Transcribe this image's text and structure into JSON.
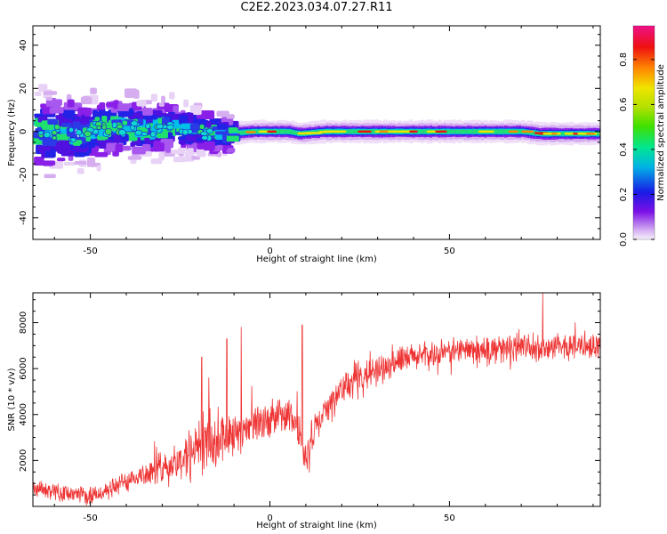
{
  "title": "C2E2.2023.034.07.27.R11",
  "chart_data": [
    {
      "type": "heatmap",
      "xlabel": "Height of straight line (km)",
      "ylabel": "Frequency (Hz)",
      "xlim": [
        -66,
        92
      ],
      "ylim": [
        -50,
        49
      ],
      "xticks": [
        -50,
        0,
        50
      ],
      "yticks": [
        -40,
        -20,
        0,
        20,
        40
      ],
      "ridge": [
        [
          -66,
          0
        ],
        [
          -55,
          -1
        ],
        [
          -45,
          2
        ],
        [
          -35,
          1
        ],
        [
          -28,
          2
        ],
        [
          -20,
          0
        ],
        [
          -12,
          -1
        ],
        [
          -5,
          0
        ],
        [
          0,
          0
        ],
        [
          5,
          0
        ],
        [
          8,
          -1
        ],
        [
          15,
          0
        ],
        [
          30,
          0
        ],
        [
          50,
          0
        ],
        [
          70,
          0
        ],
        [
          75,
          -1
        ],
        [
          92,
          -1
        ]
      ],
      "colorbar": {
        "label": "Normalized spectral amplitude",
        "range": [
          0,
          0.95
        ],
        "ticks": [
          0.0,
          0.2,
          0.4,
          0.6,
          0.8
        ],
        "tick_labels": [
          "0.0",
          "0.2",
          "0.4",
          "0.6",
          "0.8"
        ]
      }
    },
    {
      "type": "line",
      "xlabel": "Height of straight line (km)",
      "ylabel": "SNR (10 * v/v)",
      "xlim": [
        -66,
        92
      ],
      "ylim": [
        0,
        9300
      ],
      "xticks": [
        -50,
        0,
        50
      ],
      "yticks": [
        2000,
        4000,
        6000,
        8000
      ],
      "color": "#ee3333",
      "trend": [
        [
          -66,
          700
        ],
        [
          -60,
          700
        ],
        [
          -55,
          500
        ],
        [
          -50,
          450
        ],
        [
          -45,
          700
        ],
        [
          -40,
          1100
        ],
        [
          -35,
          1400
        ],
        [
          -30,
          1700
        ],
        [
          -25,
          2000
        ],
        [
          -20,
          2500
        ],
        [
          -15,
          2900
        ],
        [
          -10,
          3300
        ],
        [
          -5,
          3500
        ],
        [
          0,
          3700
        ],
        [
          3,
          4000
        ],
        [
          6,
          3800
        ],
        [
          8,
          3300
        ],
        [
          10,
          2200
        ],
        [
          12,
          3200
        ],
        [
          16,
          4200
        ],
        [
          20,
          5100
        ],
        [
          25,
          5600
        ],
        [
          30,
          6000
        ],
        [
          35,
          6300
        ],
        [
          40,
          6500
        ],
        [
          45,
          6600
        ],
        [
          50,
          6700
        ],
        [
          55,
          6800
        ],
        [
          60,
          6800
        ],
        [
          65,
          6850
        ],
        [
          70,
          6900
        ],
        [
          75,
          6900
        ],
        [
          80,
          6900
        ],
        [
          85,
          6950
        ],
        [
          92,
          7000
        ]
      ],
      "noise": [
        [
          -66,
          300
        ],
        [
          -45,
          350
        ],
        [
          -35,
          450
        ],
        [
          -25,
          800
        ],
        [
          -18,
          1300
        ],
        [
          -10,
          900
        ],
        [
          0,
          600
        ],
        [
          10,
          700
        ],
        [
          20,
          600
        ],
        [
          40,
          500
        ],
        [
          92,
          500
        ]
      ],
      "spikes": [
        [
          -19,
          6500
        ],
        [
          -17,
          5600
        ],
        [
          -12,
          7300
        ],
        [
          -8,
          7800
        ],
        [
          9,
          7900
        ],
        [
          76,
          9300
        ],
        [
          85,
          8000
        ]
      ]
    }
  ]
}
